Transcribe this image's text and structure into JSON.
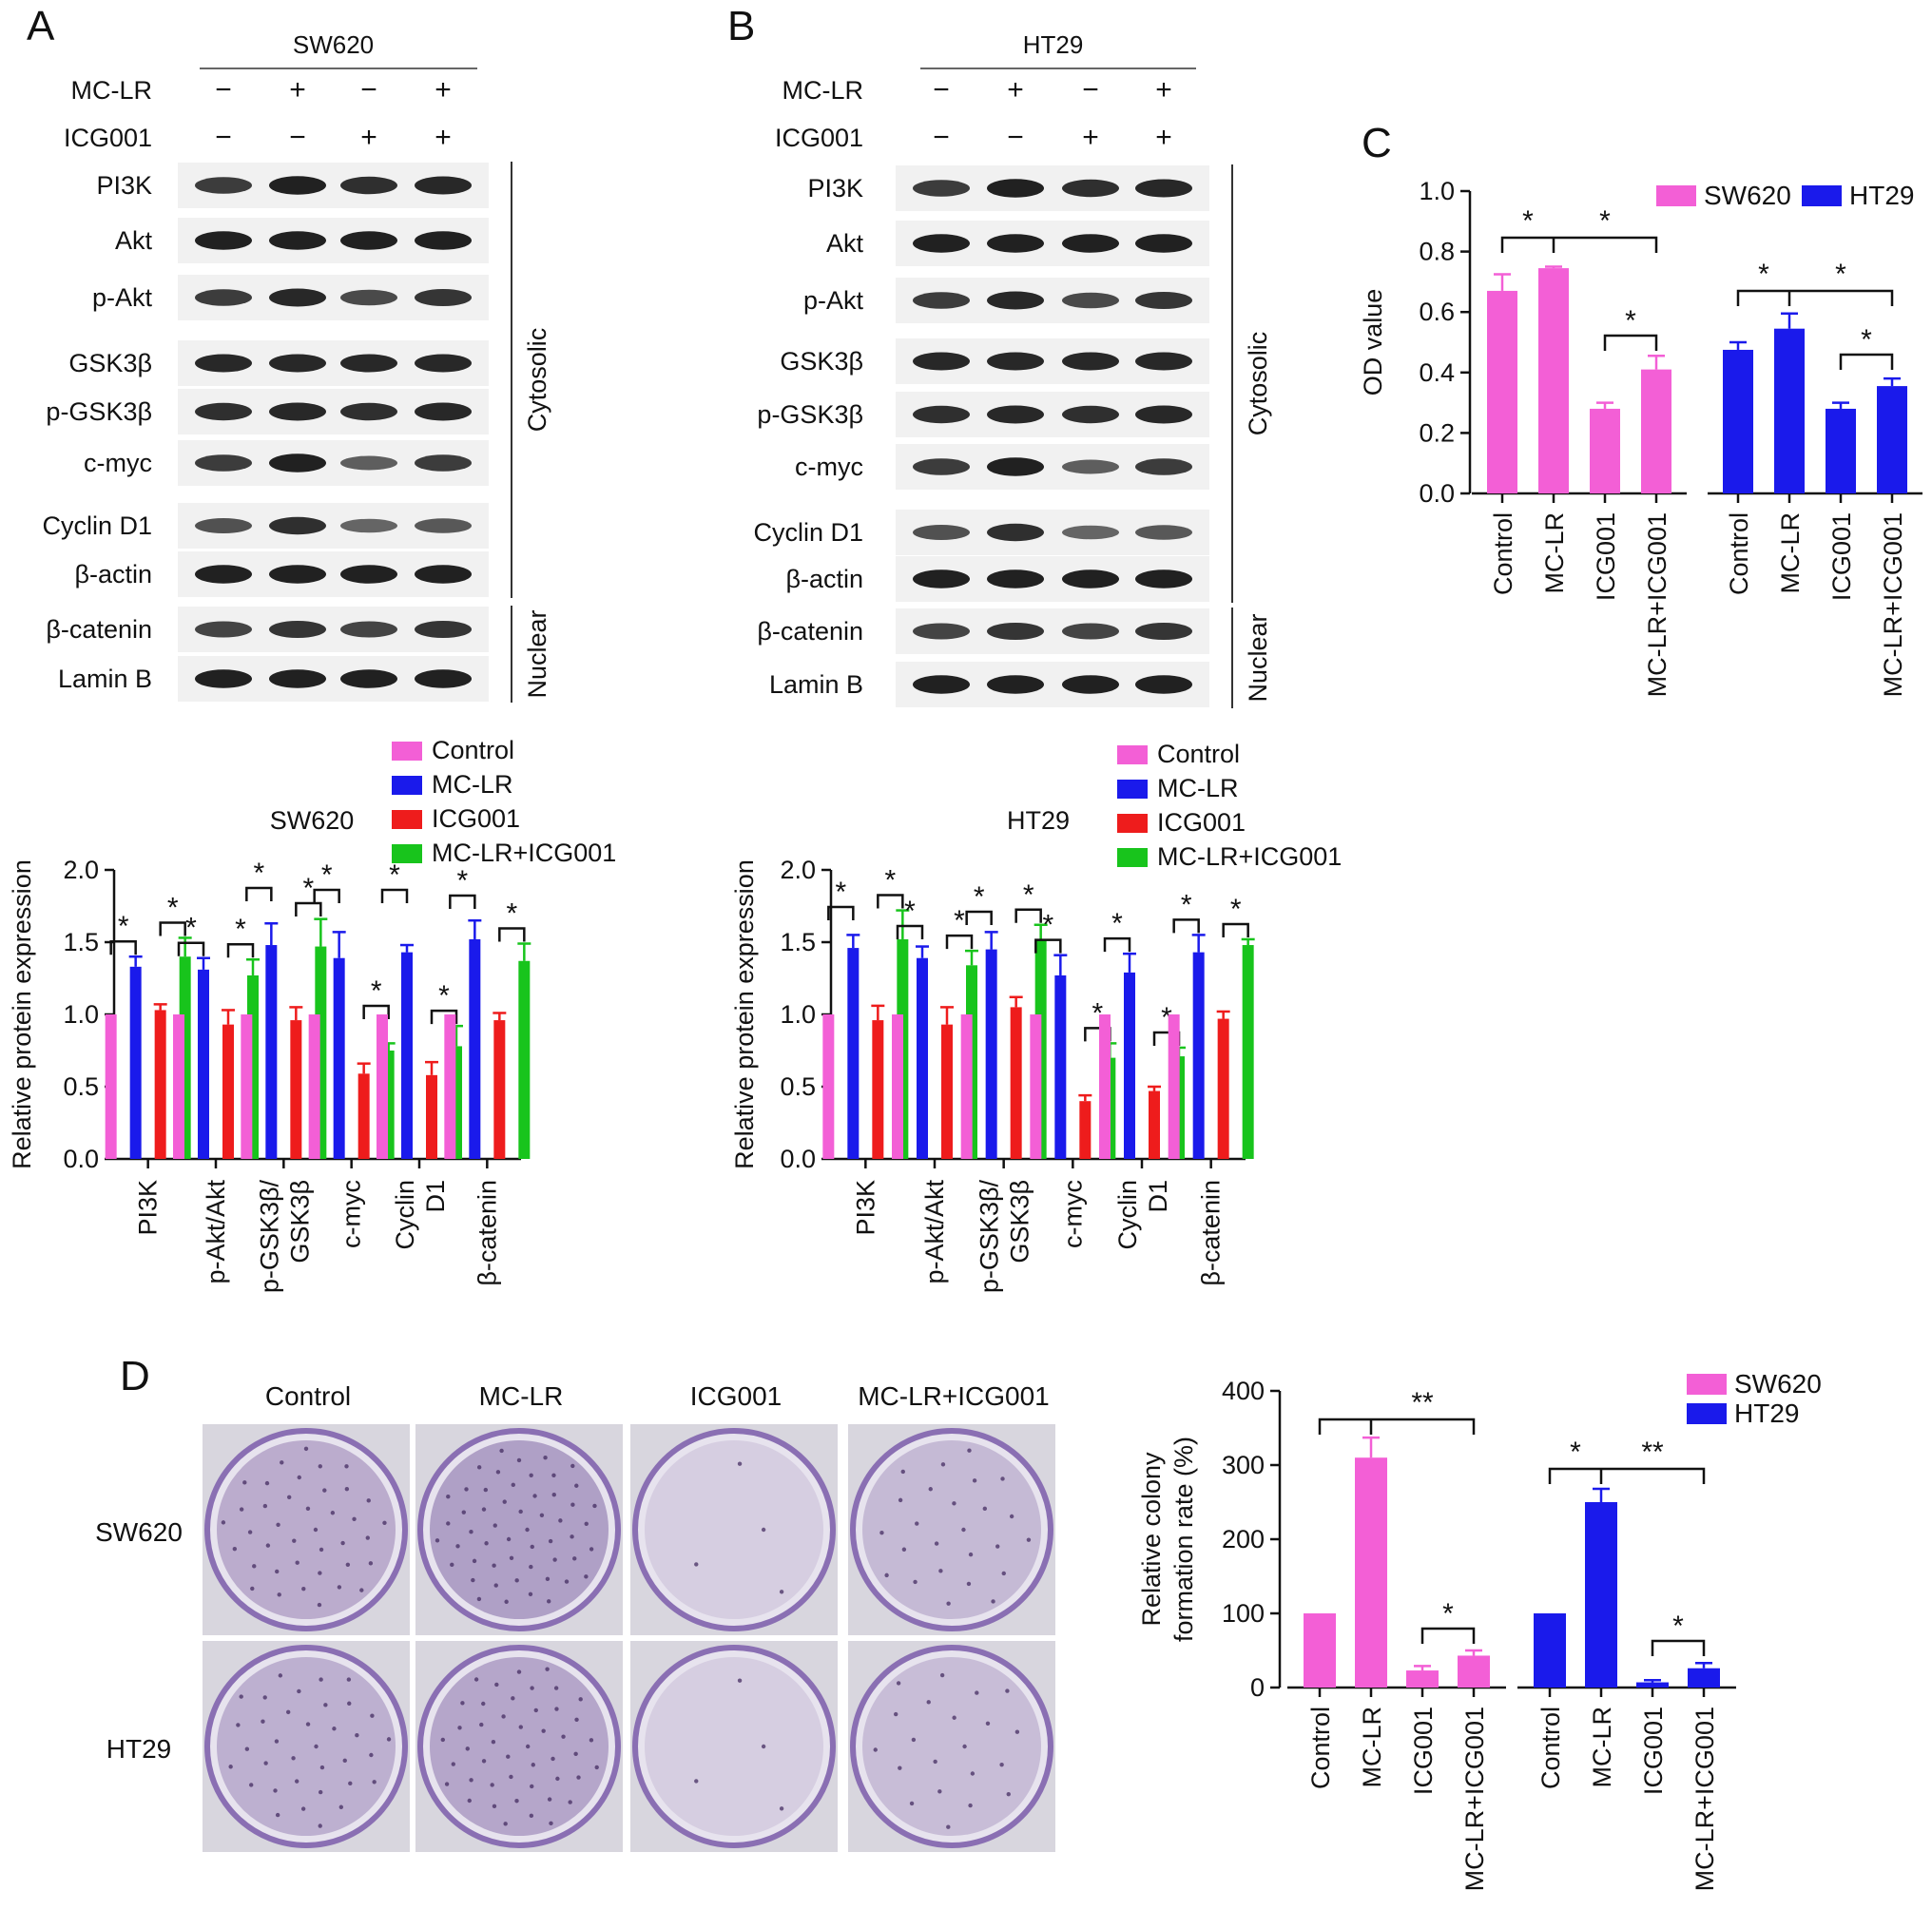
{
  "colors": {
    "control": "#f35fd6",
    "mclr": "#1a1aeb",
    "icg": "#ee1c1c",
    "combo": "#18c41c",
    "sw620": "#f35fd6",
    "ht29": "#1a1aeb"
  },
  "panels": {
    "A": {
      "letter": "A",
      "cell": "SW620",
      "rows": [
        {
          "label": "MC-LR",
          "signs": [
            "−",
            "+",
            "−",
            "+"
          ]
        },
        {
          "label": "ICG001",
          "signs": [
            "−",
            "−",
            "+",
            "+"
          ]
        }
      ],
      "blots": [
        "PI3K",
        "Akt",
        "p-Akt",
        "GSK3β",
        "p-GSK3β",
        "c-myc",
        "Cyclin D1",
        "β-actin",
        "β-catenin",
        "Lamin B"
      ],
      "fractions": [
        "Cytosolic",
        "Nuclear"
      ]
    },
    "B": {
      "letter": "B",
      "cell": "HT29",
      "rows": [
        {
          "label": "MC-LR",
          "signs": [
            "−",
            "+",
            "−",
            "+"
          ]
        },
        {
          "label": "ICG001",
          "signs": [
            "−",
            "−",
            "+",
            "+"
          ]
        }
      ],
      "blots": [
        "PI3K",
        "Akt",
        "p-Akt",
        "GSK3β",
        "p-GSK3β",
        "c-myc",
        "Cyclin D1",
        "β-actin",
        "β-catenin",
        "Lamin B"
      ],
      "fractions": [
        "Cytosolic",
        "Nuclear"
      ]
    },
    "C": {
      "letter": "C"
    },
    "D": {
      "letter": "D",
      "columns": [
        "Control",
        "MC-LR",
        "ICG001",
        "MC-LR+ICG001"
      ],
      "rows": [
        "SW620",
        "HT29"
      ]
    }
  },
  "chart_data": [
    {
      "id": "A-bar",
      "type": "bar",
      "title": "SW620",
      "ylabel": "Relative protein expression",
      "ylim": [
        0,
        2.0
      ],
      "yticks": [
        "0.0",
        "0.5",
        "1.0",
        "1.5",
        "2.0"
      ],
      "categories": [
        "PI3K",
        "p-Akt/Akt",
        "p-GSK3β/ GSK3β",
        "c-myc",
        "Cyclin D1",
        "β-catenin"
      ],
      "legend": [
        "Control",
        "MC-LR",
        "ICG001",
        "MC-LR+ICG001"
      ],
      "series": [
        {
          "name": "Control",
          "values": [
            1.0,
            1.0,
            1.0,
            1.0,
            1.0,
            1.0
          ],
          "errors": [
            0,
            0,
            0,
            0,
            0,
            0
          ]
        },
        {
          "name": "MC-LR",
          "values": [
            1.33,
            1.31,
            1.48,
            1.39,
            1.43,
            1.52
          ],
          "errors": [
            0.07,
            0.08,
            0.15,
            0.18,
            0.05,
            0.13
          ]
        },
        {
          "name": "ICG001",
          "values": [
            1.03,
            0.93,
            0.96,
            0.59,
            0.58,
            0.96
          ],
          "errors": [
            0.04,
            0.1,
            0.09,
            0.07,
            0.09,
            0.05
          ]
        },
        {
          "name": "MC-LR+ICG001",
          "values": [
            1.4,
            1.27,
            1.47,
            0.75,
            0.78,
            1.37
          ],
          "errors": [
            0.13,
            0.11,
            0.19,
            0.05,
            0.14,
            0.12
          ]
        }
      ],
      "sig_labels": [
        "*",
        "*",
        "*",
        "*",
        "*",
        "*",
        "*",
        "*",
        "*",
        "*",
        "*",
        "*",
        "*",
        "*"
      ]
    },
    {
      "id": "B-bar",
      "type": "bar",
      "title": "HT29",
      "ylabel": "Relative protein expression",
      "ylim": [
        0,
        2.0
      ],
      "yticks": [
        "0.0",
        "0.5",
        "1.0",
        "1.5",
        "2.0"
      ],
      "categories": [
        "PI3K",
        "p-Akt/Akt",
        "p-GSK3β/ GSK3β",
        "c-myc",
        "Cyclin D1",
        "β-catenin"
      ],
      "legend": [
        "Control",
        "MC-LR",
        "ICG001",
        "MC-LR+ICG001"
      ],
      "series": [
        {
          "name": "Control",
          "values": [
            1.0,
            1.0,
            1.0,
            1.0,
            1.0,
            1.0
          ],
          "errors": [
            0,
            0,
            0,
            0,
            0,
            0
          ]
        },
        {
          "name": "MC-LR",
          "values": [
            1.46,
            1.39,
            1.45,
            1.27,
            1.29,
            1.43
          ],
          "errors": [
            0.09,
            0.08,
            0.12,
            0.14,
            0.13,
            0.12
          ]
        },
        {
          "name": "ICG001",
          "values": [
            0.96,
            0.93,
            1.05,
            0.4,
            0.47,
            0.97
          ],
          "errors": [
            0.1,
            0.12,
            0.07,
            0.04,
            0.03,
            0.05
          ]
        },
        {
          "name": "MC-LR+ICG001",
          "values": [
            1.52,
            1.34,
            1.51,
            0.7,
            0.71,
            1.48
          ],
          "errors": [
            0.2,
            0.1,
            0.11,
            0.1,
            0.06,
            0.04
          ]
        }
      ],
      "sig_labels": [
        "*",
        "*",
        "*",
        "*",
        "*",
        "*",
        "*",
        "*",
        "*",
        "*",
        "*",
        "*",
        "*",
        "*"
      ]
    },
    {
      "id": "C-bar",
      "type": "bar",
      "ylabel": "OD value",
      "ylim": [
        0,
        1.0
      ],
      "yticks": [
        "0.0",
        "0.2",
        "0.4",
        "0.6",
        "0.8",
        "1.0"
      ],
      "categories": [
        "Control",
        "MC-LR",
        "ICG001",
        "MC-LR+ICG001"
      ],
      "legend": [
        "SW620",
        "HT29"
      ],
      "series": [
        {
          "name": "SW620",
          "values": [
            0.67,
            0.745,
            0.28,
            0.41
          ],
          "errors": [
            0.055,
            0.005,
            0.02,
            0.045
          ]
        },
        {
          "name": "HT29",
          "values": [
            0.475,
            0.545,
            0.28,
            0.355
          ],
          "errors": [
            0.025,
            0.05,
            0.02,
            0.025
          ]
        }
      ],
      "sig_labels": [
        "*",
        "*",
        "*",
        "*",
        "*",
        "*"
      ]
    },
    {
      "id": "D-bar",
      "type": "bar",
      "ylabel": "Relative colony formation rate (%)",
      "ylim": [
        0,
        400
      ],
      "yticks": [
        "0",
        "100",
        "200",
        "300",
        "400"
      ],
      "categories": [
        "Control",
        "MC-LR",
        "ICG001",
        "MC-LR+ICG001"
      ],
      "legend": [
        "SW620",
        "HT29"
      ],
      "series": [
        {
          "name": "SW620",
          "values": [
            100,
            310,
            23,
            43
          ],
          "errors": [
            0,
            27,
            6,
            7
          ]
        },
        {
          "name": "HT29",
          "values": [
            100,
            250,
            7,
            26
          ],
          "errors": [
            0,
            18,
            3,
            7
          ]
        }
      ],
      "sig_labels": [
        "**",
        "*",
        "*",
        "**",
        "*"
      ]
    }
  ]
}
